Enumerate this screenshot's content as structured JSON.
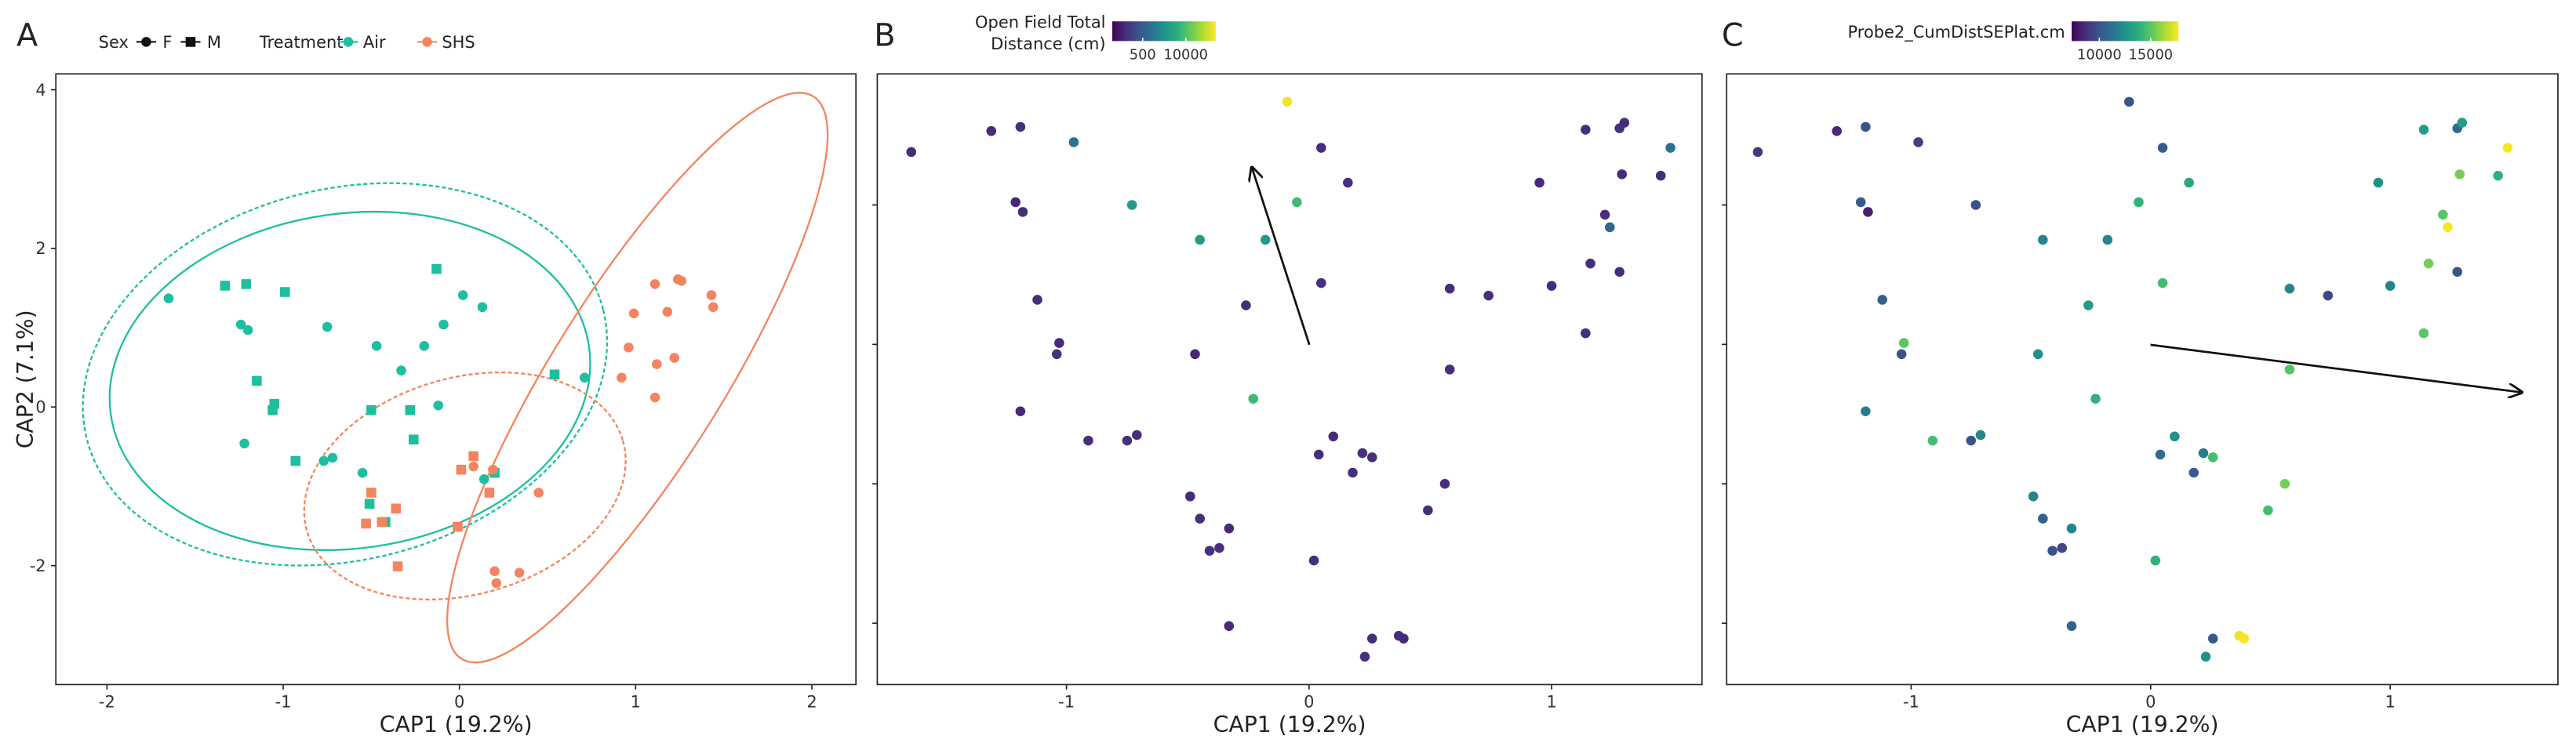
{
  "chart_data": [
    {
      "type": "scatter",
      "panel": "A",
      "xlabel": "CAP1 (19.2%)",
      "ylabel": "CAP2 (7.1%)",
      "xlim": [
        -2.29,
        2.25
      ],
      "ylim": [
        -3.5,
        4.2
      ],
      "xticks": [
        -2,
        -1,
        0,
        1,
        2
      ],
      "yticks": [
        -2,
        0,
        2,
        4
      ],
      "legend": {
        "sex_title": "Sex",
        "treatment_title": "Treatment",
        "sex": [
          {
            "name": "F",
            "marker": "circle"
          },
          {
            "name": "M",
            "marker": "square"
          }
        ]
      },
      "series": [
        {
          "name": "Air",
          "color": "#1dbf9f",
          "points": {
            "F": {
              "x": [
                -1.65,
                -1.24,
                -1.2,
                -0.75,
                -0.47,
                -0.2,
                -0.09,
                0.02,
                0.13,
                -1.22,
                -0.77,
                -0.72,
                -0.55,
                -0.33,
                -0.12,
                0.14,
                0.71
              ],
              "y": [
                1.37,
                1.04,
                0.97,
                1.01,
                0.77,
                0.77,
                1.04,
                1.41,
                1.26,
                -0.46,
                -0.68,
                -0.64,
                -0.83,
                0.46,
                0.02,
                -0.91,
                0.37
              ]
            },
            "M": {
              "x": [
                -1.33,
                -1.21,
                -0.99,
                -1.15,
                -1.05,
                -1.06,
                -0.93,
                -0.5,
                -0.28,
                -0.26,
                -0.13,
                -0.51,
                -0.42,
                0.2,
                0.54
              ],
              "y": [
                1.53,
                1.55,
                1.45,
                0.33,
                0.04,
                -0.04,
                -0.68,
                -0.04,
                -0.04,
                -0.41,
                1.74,
                -1.22,
                -1.45,
                -0.83,
                0.41
              ]
            }
          }
        },
        {
          "name": "SHS",
          "color": "#f4845f",
          "points": {
            "F": {
              "x": [
                1.11,
                1.24,
                1.26,
                1.43,
                1.44,
                0.99,
                1.18,
                0.96,
                1.12,
                1.22,
                1.11,
                0.92,
                0.21,
                0.2,
                0.34,
                0.45,
                0.19,
                0.08
              ],
              "y": [
                1.55,
                1.61,
                1.59,
                1.41,
                1.26,
                1.18,
                1.2,
                0.75,
                0.54,
                0.62,
                0.12,
                0.37,
                -2.22,
                -2.07,
                -2.09,
                -1.08,
                -0.79,
                -0.75
              ]
            },
            "M": {
              "x": [
                0.08,
                0.01,
                -0.01,
                -0.5,
                -0.53,
                -0.36,
                -0.44,
                -0.35,
                0.17
              ],
              "y": [
                -0.62,
                -0.79,
                -1.51,
                -1.08,
                -1.47,
                -1.28,
                -1.45,
                -2.01,
                -1.08
              ]
            }
          }
        }
      ]
    },
    {
      "type": "scatter",
      "panel": "B",
      "xlabel": "CAP1 (19.2%)",
      "xlim": [
        -1.78,
        1.62
      ],
      "ylim": [
        -2.44,
        1.94
      ],
      "xticks": [
        -1,
        0,
        1
      ],
      "yticks": [
        -2,
        -1,
        0,
        1
      ],
      "ytick_labels": false,
      "colorbar": {
        "title": [
          "Open Field Total",
          "Distance (cm)"
        ],
        "scale": "log",
        "lim": [
          60,
          80000
        ],
        "ticks": [
          500,
          10000
        ]
      },
      "x": [
        -1.64,
        -1.31,
        -1.19,
        -0.97,
        -0.09,
        0.05,
        -1.21,
        -1.18,
        -0.73,
        0.16,
        -0.05,
        -0.45,
        -0.18,
        -1.12,
        -1.03,
        -1.04,
        -0.26,
        -0.47,
        0.05,
        -1.19,
        -0.91,
        -0.75,
        -0.71,
        -0.23,
        0.04,
        0.1,
        0.18,
        0.22,
        0.26,
        -0.49,
        -0.45,
        -0.41,
        -0.37,
        -0.33,
        0.02,
        0.49,
        0.56,
        -0.33,
        0.26,
        0.23,
        0.37,
        0.39,
        0.58,
        0.58,
        0.74,
        1.0,
        1.14,
        1.16,
        1.22,
        1.24,
        0.95,
        1.14,
        1.28,
        1.3,
        1.29,
        1.45,
        1.49,
        1.28
      ],
      "y": [
        1.38,
        1.53,
        1.56,
        1.45,
        1.74,
        1.41,
        1.02,
        0.95,
        1.0,
        1.16,
        1.02,
        0.75,
        0.75,
        0.32,
        0.01,
        -0.07,
        0.28,
        -0.07,
        0.44,
        -0.48,
        -0.69,
        -0.69,
        -0.65,
        -0.39,
        -0.79,
        -0.66,
        -0.92,
        -0.78,
        -0.81,
        -1.09,
        -1.25,
        -1.48,
        -1.46,
        -1.32,
        -1.55,
        -1.19,
        -1.0,
        -2.02,
        -2.11,
        -2.24,
        -2.09,
        -2.11,
        0.4,
        -0.18,
        0.35,
        0.42,
        0.08,
        0.58,
        0.93,
        0.84,
        1.16,
        1.54,
        1.55,
        1.59,
        1.22,
        1.21,
        1.41,
        0.52
      ],
      "values": [
        150,
        140,
        160,
        900,
        70000,
        150,
        130,
        150,
        3000,
        160,
        8000,
        3000,
        3000,
        150,
        140,
        160,
        150,
        130,
        150,
        140,
        150,
        160,
        150,
        8000,
        150,
        140,
        150,
        160,
        150,
        140,
        150,
        160,
        150,
        140,
        150,
        160,
        150,
        140,
        150,
        160,
        150,
        140,
        150,
        160,
        150,
        140,
        150,
        160,
        150,
        700,
        140,
        150,
        160,
        150,
        140,
        150,
        900,
        150
      ]
    },
    {
      "type": "scatter",
      "panel": "C",
      "xlabel": "CAP1 (19.2%)",
      "xlim": [
        -1.77,
        1.7
      ],
      "ylim": [
        -2.44,
        1.94
      ],
      "xticks": [
        -1,
        0,
        1
      ],
      "yticks": [
        -2,
        -1,
        0,
        1
      ],
      "ytick_labels": false,
      "colorbar": {
        "title": [
          "Probe2_CumDistSEPlat.cm"
        ],
        "scale": "linear",
        "lim": [
          7300,
          17700
        ],
        "ticks": [
          10000,
          15000
        ]
      },
      "x": [
        -1.64,
        -1.31,
        -1.19,
        -0.97,
        -0.09,
        0.05,
        -1.21,
        -1.18,
        -0.73,
        0.16,
        -0.05,
        -0.45,
        -0.18,
        -1.12,
        -1.03,
        -1.04,
        -0.26,
        -0.47,
        0.05,
        -1.19,
        -0.91,
        -0.75,
        -0.71,
        -0.23,
        0.04,
        0.1,
        0.18,
        0.22,
        0.26,
        -0.49,
        -0.45,
        -0.41,
        -0.37,
        -0.33,
        0.02,
        0.49,
        0.56,
        -0.33,
        0.26,
        0.23,
        0.37,
        0.39,
        0.58,
        0.58,
        0.74,
        1.0,
        1.14,
        1.16,
        1.22,
        1.24,
        0.95,
        1.14,
        1.28,
        1.3,
        1.29,
        1.45,
        1.49,
        1.28
      ],
      "y": [
        1.38,
        1.53,
        1.56,
        1.45,
        1.74,
        1.41,
        1.02,
        0.95,
        1.0,
        1.16,
        1.02,
        0.75,
        0.75,
        0.32,
        0.01,
        -0.07,
        0.28,
        -0.07,
        0.44,
        -0.48,
        -0.69,
        -0.69,
        -0.65,
        -0.39,
        -0.79,
        -0.66,
        -0.92,
        -0.78,
        -0.81,
        -1.09,
        -1.25,
        -1.48,
        -1.46,
        -1.32,
        -1.55,
        -1.19,
        -1.0,
        -2.02,
        -2.11,
        -2.24,
        -2.09,
        -2.11,
        0.4,
        -0.18,
        0.35,
        0.42,
        0.08,
        0.58,
        0.93,
        0.84,
        1.16,
        1.54,
        1.55,
        1.59,
        1.22,
        1.21,
        1.41,
        0.52
      ],
      "values": [
        9000,
        8500,
        10000,
        9200,
        10000,
        10200,
        10300,
        8200,
        9800,
        13500,
        14000,
        12000,
        12000,
        10500,
        15000,
        10000,
        13000,
        12500,
        14500,
        11500,
        14500,
        10000,
        12000,
        14000,
        11000,
        12500,
        10200,
        11500,
        14500,
        12000,
        10500,
        10000,
        9500,
        12000,
        14000,
        14500,
        15500,
        10500,
        10200,
        12500,
        17400,
        17600,
        12000,
        14800,
        9500,
        12000,
        15000,
        15500,
        15000,
        17600,
        12500,
        13000,
        11000,
        13000,
        15500,
        14000,
        17600,
        10000
      ]
    }
  ]
}
